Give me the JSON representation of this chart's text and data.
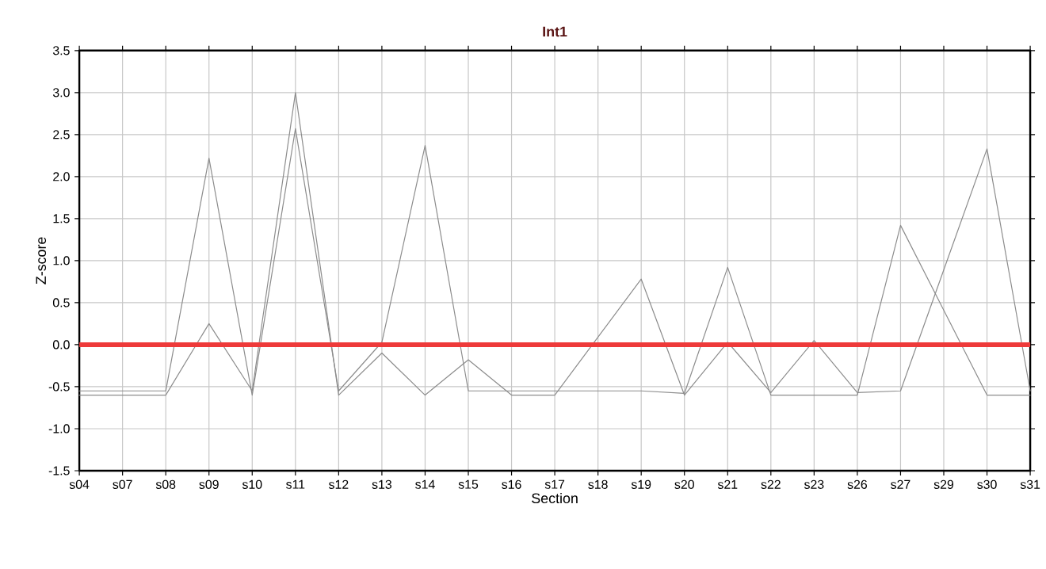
{
  "chart_data": {
    "type": "line",
    "title": "Int1",
    "xlabel": "Section",
    "ylabel": "Z-score",
    "categories": [
      "s04",
      "s07",
      "s08",
      "s09",
      "s10",
      "s11",
      "s12",
      "s13",
      "s14",
      "s15",
      "s16",
      "s17",
      "s18",
      "s19",
      "s20",
      "s21",
      "s22",
      "s23",
      "s26",
      "s27",
      "s29",
      "s30",
      "s31"
    ],
    "series": [
      {
        "color": "#8c8c8c",
        "values": [
          -0.55,
          -0.55,
          -0.55,
          2.22,
          -0.6,
          2.57,
          -0.55,
          0.03,
          2.37,
          -0.55,
          -0.55,
          -0.55,
          -0.55,
          -0.55,
          -0.58,
          0.92,
          -0.6,
          -0.6,
          -0.6,
          1.42,
          0.41,
          -0.6,
          -0.6
        ]
      },
      {
        "color": "#8c8c8c",
        "values": [
          -0.6,
          -0.6,
          -0.6,
          0.25,
          -0.55,
          3.0,
          -0.6,
          -0.1,
          -0.6,
          -0.18,
          -0.6,
          -0.6,
          0.09,
          0.78,
          -0.6,
          0.03,
          -0.57,
          0.05,
          -0.57,
          -0.55,
          0.89,
          2.33,
          -0.55
        ]
      }
    ],
    "ylim": [
      -1.5,
      3.5
    ],
    "yticks": [
      {
        "value": -1.5,
        "label": "-1.5"
      },
      {
        "value": -1.0,
        "label": "-1.0"
      },
      {
        "value": -0.5,
        "label": "-0.5"
      },
      {
        "value": 0,
        "label": "0.0"
      },
      {
        "value": 0.5,
        "label": "0.5"
      },
      {
        "value": 1.0,
        "label": "1.0"
      },
      {
        "value": 1.5,
        "label": "1.5"
      },
      {
        "value": 2.0,
        "label": "2.0"
      },
      {
        "value": 2.5,
        "label": "2.5"
      },
      {
        "value": 3.0,
        "label": "3.0"
      },
      {
        "value": 3.5,
        "label": "3.5"
      }
    ],
    "ref_lines": [
      {
        "axis": "y",
        "value": 0,
        "color": "#ee3a3a"
      }
    ],
    "grid": true,
    "marker": "none",
    "line_style": "solid"
  }
}
